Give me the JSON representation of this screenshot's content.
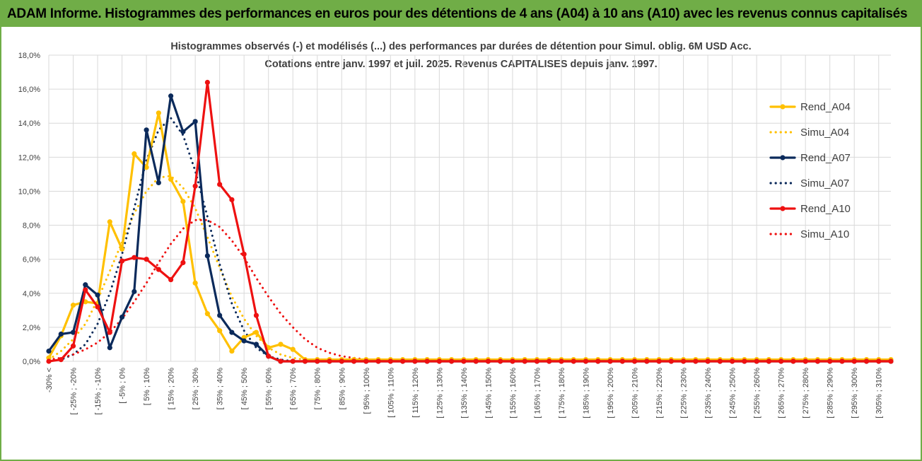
{
  "header": {
    "title": "ADAM Informe. Histogrammes des performances en euros pour des détentions de 4 ans (A04) à 10 ans (A10) avec les revenus connus capitalisés"
  },
  "colors": {
    "header_bg": "#70ad47",
    "A04": "#ffc000",
    "A07": "#0b2a5b",
    "A10": "#ee1111",
    "grid": "#d9d9d9",
    "text": "#404040"
  },
  "chart_data": {
    "type": "line",
    "title_line1": "Histogrammes observés (-) et modélisés (...) des performances par durées de détention pour Simul. oblig. 6M USD Acc.",
    "title_line2": "Cotations entre janv. 1997 et juil. 2025. Revenus CAPITALISES depuis janv. 1997.",
    "ylim": [
      0,
      18
    ],
    "yticks": [
      "0,0%",
      "2,0%",
      "4,0%",
      "6,0%",
      "8,0%",
      "10,0%",
      "12,0%",
      "14,0%",
      "16,0%",
      "18,0%"
    ],
    "grid": true,
    "legend_position": "right",
    "x_labels": [
      "-30% <",
      "[ -25% ; -20%",
      "[ -15% ; -10%",
      "[ -5% ; 0%",
      "[ 5% ; 10%",
      "[ 15% ; 20%",
      "[ 25% ; 30%",
      "[ 35% ; 40%",
      "[ 45% ; 50%",
      "[ 55% ; 60%",
      "[ 65% ; 70%",
      "[ 75% ; 80%",
      "[ 85% ; 90%",
      "[ 95% ; 100%",
      "[ 105% ; 110%",
      "[ 115% ; 120%",
      "[ 125% ; 130%",
      "[ 135% ; 140%",
      "[ 145% ; 150%",
      "[ 155% ; 160%",
      "[ 165% ; 170%",
      "[ 175% ; 180%",
      "[ 185% ; 190%",
      "[ 195% ; 200%",
      "[ 205% ; 210%",
      "[ 215% ; 220%",
      "[ 225% ; 230%",
      "[ 235% ; 240%",
      "[ 245% ; 250%",
      "[ 255% ; 260%",
      "[ 265% ; 270%",
      "[ 275% ; 280%",
      "[ 285% ; 290%",
      "[ 295% ; 300%",
      "[ 305% ; 310%"
    ],
    "series": [
      {
        "name": "Rend_A04",
        "style": "solid",
        "color": "#ffc000",
        "values": [
          0.2,
          1.5,
          3.3,
          3.5,
          3.4,
          8.2,
          6.6,
          12.2,
          11.4,
          14.6,
          10.7,
          9.4,
          4.6,
          2.8,
          1.8,
          0.6,
          1.4,
          1.7,
          0.8,
          1.0,
          0.7,
          0.1,
          0.1,
          0.1,
          0.1,
          0.1,
          0.1,
          0.1,
          0.1,
          0.1,
          0.1,
          0.1,
          0.1,
          0.1,
          0.1,
          0.1,
          0.1,
          0.1,
          0.1,
          0.1,
          0.1,
          0.1,
          0.1,
          0.1,
          0.1,
          0.1,
          0.1,
          0.1,
          0.1,
          0.1,
          0.1,
          0.1,
          0.1,
          0.1,
          0.1,
          0.1,
          0.1,
          0.1,
          0.1,
          0.1,
          0.1,
          0.1,
          0.1,
          0.1,
          0.1,
          0.1,
          0.1,
          0.1,
          0.1,
          0.1
        ]
      },
      {
        "name": "Simu_A04",
        "style": "dotted",
        "color": "#ffc000",
        "values": [
          0.1,
          0.6,
          1.3,
          2.2,
          3.6,
          5.3,
          7.0,
          8.7,
          10.0,
          10.8,
          10.9,
          10.2,
          9.0,
          7.3,
          5.5,
          3.8,
          2.5,
          1.5,
          0.8,
          0.4,
          0.2,
          0.1,
          0.1,
          0.1,
          0.1,
          0.1,
          0.1,
          0.1,
          0.1,
          0.1,
          0.1,
          0.1,
          0.1,
          0.1,
          0.1,
          0.1,
          0.1,
          0.1,
          0.1,
          0.1,
          0.1,
          0.1,
          0.1,
          0.1,
          0.1,
          0.1,
          0.1,
          0.1,
          0.1,
          0.1,
          0.1,
          0.1,
          0.1,
          0.1,
          0.1,
          0.1,
          0.1,
          0.1,
          0.1,
          0.1,
          0.1,
          0.1,
          0.1,
          0.1,
          0.1,
          0.1,
          0.1,
          0.1,
          0.1,
          0.1
        ]
      },
      {
        "name": "Rend_A07",
        "style": "solid",
        "color": "#0b2a5b",
        "values": [
          0.6,
          1.6,
          1.7,
          4.5,
          3.9,
          0.8,
          2.6,
          4.1,
          13.6,
          10.5,
          15.6,
          13.5,
          14.1,
          6.2,
          2.7,
          1.7,
          1.2,
          1.0,
          0.3,
          0.0,
          0.0,
          0.0,
          0.0,
          0.0,
          0.0,
          0.0,
          0.0,
          0.0,
          0.0,
          0.0,
          0.0,
          0.0,
          0.0,
          0.0,
          0.0,
          0.0,
          0.0,
          0.0,
          0.0,
          0.0,
          0.0,
          0.0,
          0.0,
          0.0,
          0.0,
          0.0,
          0.0,
          0.0,
          0.0,
          0.0,
          0.0,
          0.0,
          0.0,
          0.0,
          0.0,
          0.0,
          0.0,
          0.0,
          0.0,
          0.0,
          0.0,
          0.0,
          0.0,
          0.0,
          0.0,
          0.0,
          0.0,
          0.0,
          0.0,
          0.0
        ]
      },
      {
        "name": "Simu_A07",
        "style": "dotted",
        "color": "#0b2a5b",
        "values": [
          0.0,
          0.1,
          0.4,
          1.0,
          2.2,
          4.0,
          6.3,
          9.0,
          11.8,
          13.6,
          14.3,
          13.3,
          11.2,
          8.5,
          5.7,
          3.4,
          1.8,
          0.8,
          0.3,
          0.1,
          0.0,
          0.0,
          0.0,
          0.0,
          0.0,
          0.0,
          0.0,
          0.0,
          0.0,
          0.0,
          0.0,
          0.0,
          0.0,
          0.0,
          0.0,
          0.0,
          0.0,
          0.0,
          0.0,
          0.0,
          0.0,
          0.0,
          0.0,
          0.0,
          0.0,
          0.0,
          0.0,
          0.0,
          0.0,
          0.0,
          0.0,
          0.0,
          0.0,
          0.0,
          0.0,
          0.0,
          0.0,
          0.0,
          0.0,
          0.0,
          0.0,
          0.0,
          0.0,
          0.0,
          0.0,
          0.0,
          0.0,
          0.0,
          0.0,
          0.0
        ]
      },
      {
        "name": "Rend_A10",
        "style": "solid",
        "color": "#ee1111",
        "values": [
          0.0,
          0.1,
          0.9,
          4.2,
          3.2,
          1.7,
          5.9,
          6.1,
          6.0,
          5.4,
          4.8,
          5.8,
          10.3,
          16.4,
          10.4,
          9.5,
          6.3,
          2.7,
          0.3,
          0.0,
          0.0,
          0.0,
          0.0,
          0.0,
          0.0,
          0.0,
          0.0,
          0.0,
          0.0,
          0.0,
          0.0,
          0.0,
          0.0,
          0.0,
          0.0,
          0.0,
          0.0,
          0.0,
          0.0,
          0.0,
          0.0,
          0.0,
          0.0,
          0.0,
          0.0,
          0.0,
          0.0,
          0.0,
          0.0,
          0.0,
          0.0,
          0.0,
          0.0,
          0.0,
          0.0,
          0.0,
          0.0,
          0.0,
          0.0,
          0.0,
          0.0,
          0.0,
          0.0,
          0.0,
          0.0,
          0.0,
          0.0,
          0.0,
          0.0,
          0.0
        ]
      },
      {
        "name": "Simu_A10",
        "style": "dotted",
        "color": "#ee1111",
        "values": [
          0.1,
          0.2,
          0.4,
          0.7,
          1.1,
          1.7,
          2.5,
          3.5,
          4.6,
          5.8,
          6.9,
          7.8,
          8.3,
          8.3,
          7.9,
          7.1,
          6.1,
          4.9,
          3.8,
          2.8,
          2.0,
          1.3,
          0.8,
          0.5,
          0.3,
          0.2,
          0.1,
          0.0,
          0.0,
          0.0,
          0.0,
          0.0,
          0.0,
          0.0,
          0.0,
          0.0,
          0.0,
          0.0,
          0.0,
          0.0,
          0.0,
          0.0,
          0.0,
          0.0,
          0.0,
          0.0,
          0.0,
          0.0,
          0.0,
          0.0,
          0.0,
          0.0,
          0.0,
          0.0,
          0.0,
          0.0,
          0.0,
          0.0,
          0.0,
          0.0,
          0.0,
          0.0,
          0.0,
          0.0,
          0.0,
          0.0,
          0.0,
          0.0,
          0.0,
          0.0
        ]
      }
    ]
  }
}
